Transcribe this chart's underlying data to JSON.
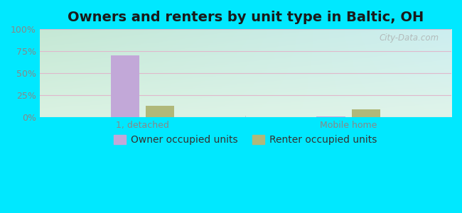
{
  "title": "Owners and renters by unit type in Baltic, OH",
  "categories": [
    "1, detached",
    "Mobile home"
  ],
  "owner_values": [
    70.5,
    0.8
  ],
  "renter_values": [
    13.0,
    8.5
  ],
  "owner_color": "#c2a8d8",
  "renter_color": "#b0b87a",
  "ylim": [
    0,
    100
  ],
  "yticks": [
    0,
    25,
    50,
    75,
    100
  ],
  "ytick_labels": [
    "0%",
    "25%",
    "50%",
    "75%",
    "100%"
  ],
  "bar_width": 0.28,
  "title_fontsize": 14,
  "tick_fontsize": 9,
  "legend_fontsize": 10,
  "watermark": "City-Data.com",
  "group_positions": [
    1.0,
    3.0
  ],
  "xlim": [
    0,
    4.0
  ],
  "outer_bg": "#00e8ff",
  "plot_bg_top_left": "#c8e8d8",
  "plot_bg_top_right": "#d8eef0",
  "plot_bg_bot_left": "#ddf0e0",
  "plot_bg_bot_right": "#e8f8f0",
  "grid_color": "#e8c8d8",
  "tick_color": "#888888"
}
